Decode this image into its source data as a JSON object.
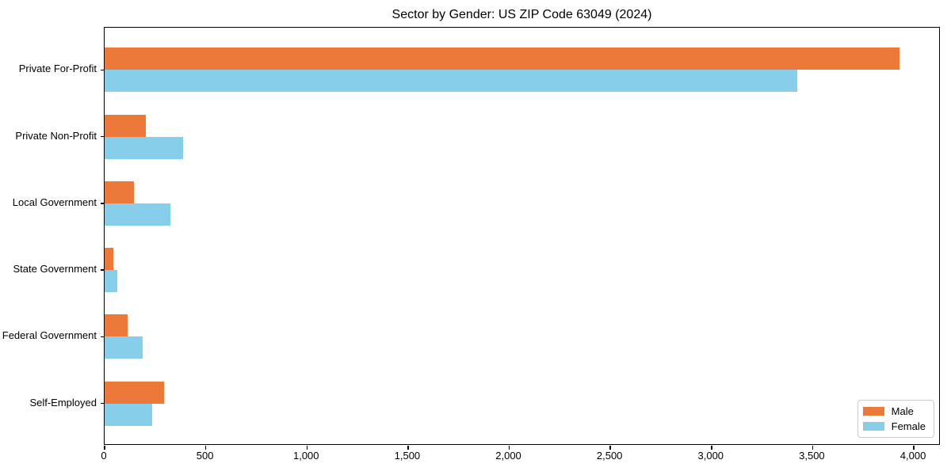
{
  "chart_data": {
    "type": "bar",
    "orientation": "horizontal",
    "title": "Sector by Gender: US ZIP Code 63049 (2024)",
    "categories": [
      "Private For-Profit",
      "Private Non-Profit",
      "Local Government",
      "State Government",
      "Federal Government",
      "Self-Employed"
    ],
    "series": [
      {
        "name": "Male",
        "color": "#EC7839",
        "values": [
          3930,
          203,
          146,
          43,
          114,
          294
        ]
      },
      {
        "name": "Female",
        "color": "#87CEEB",
        "values": [
          3425,
          388,
          326,
          62,
          189,
          236
        ]
      }
    ],
    "xlabel": "",
    "ylabel": "",
    "xlim": [
      0,
      4133
    ],
    "xticks": [
      0,
      500,
      1000,
      1500,
      2000,
      2500,
      3000,
      3500,
      4000
    ],
    "xtick_labels": [
      "0",
      "500",
      "1,000",
      "1,500",
      "2,000",
      "2,500",
      "3,000",
      "3,500",
      "4,000"
    ],
    "grid": false,
    "legend": {
      "position": "lower right"
    },
    "colors": {
      "male": "#EC7839",
      "female": "#87CEEB",
      "axis": "#000000",
      "legend_border": "#cccccc"
    }
  }
}
